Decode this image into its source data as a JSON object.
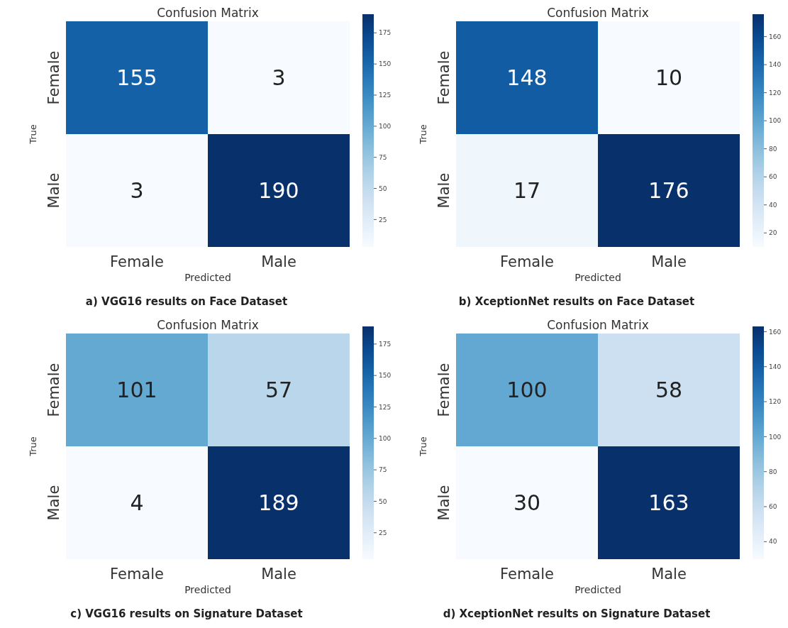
{
  "chart_data": [
    {
      "type": "heatmap",
      "title": "Confusion Matrix",
      "xlabel": "Predicted",
      "ylabel": "True",
      "categories": [
        "Female",
        "Male"
      ],
      "y_categories": [
        "Female",
        "Male"
      ],
      "cells": [
        [
          155,
          3
        ],
        [
          3,
          190
        ]
      ],
      "data_labels": true,
      "clim": [
        3,
        190
      ],
      "cticks": [
        25,
        50,
        75,
        100,
        125,
        150,
        175
      ],
      "annotations": [
        "a) VGG16 results on Face Dataset"
      ]
    },
    {
      "type": "heatmap",
      "title": "Confusion Matrix",
      "xlabel": "Predicted",
      "ylabel": "True",
      "categories": [
        "Female",
        "Male"
      ],
      "y_categories": [
        "Female",
        "Male"
      ],
      "cells": [
        [
          148,
          10
        ],
        [
          17,
          176
        ]
      ],
      "data_labels": true,
      "clim": [
        10,
        176
      ],
      "cticks": [
        20,
        40,
        60,
        80,
        100,
        120,
        140,
        160
      ],
      "annotations": [
        "b) XceptionNet results on Face Dataset"
      ]
    },
    {
      "type": "heatmap",
      "title": "Confusion Matrix",
      "xlabel": "Predicted",
      "ylabel": "True",
      "categories": [
        "Female",
        "Male"
      ],
      "y_categories": [
        "Female",
        "Male"
      ],
      "cells": [
        [
          101,
          57
        ],
        [
          4,
          189
        ]
      ],
      "data_labels": true,
      "clim": [
        4,
        189
      ],
      "cticks": [
        25,
        50,
        75,
        100,
        125,
        150,
        175
      ],
      "annotations": [
        "c) VGG16 results on Signature Dataset"
      ]
    },
    {
      "type": "heatmap",
      "title": "Confusion Matrix",
      "xlabel": "Predicted",
      "ylabel": "True",
      "categories": [
        "Female",
        "Male"
      ],
      "y_categories": [
        "Female",
        "Male"
      ],
      "cells": [
        [
          100,
          58
        ],
        [
          30,
          163
        ]
      ],
      "data_labels": true,
      "clim": [
        30,
        163
      ],
      "cticks": [
        40,
        60,
        80,
        100,
        120,
        140,
        160
      ],
      "annotations": [
        "d) XceptionNet results on Signature Dataset"
      ]
    }
  ]
}
